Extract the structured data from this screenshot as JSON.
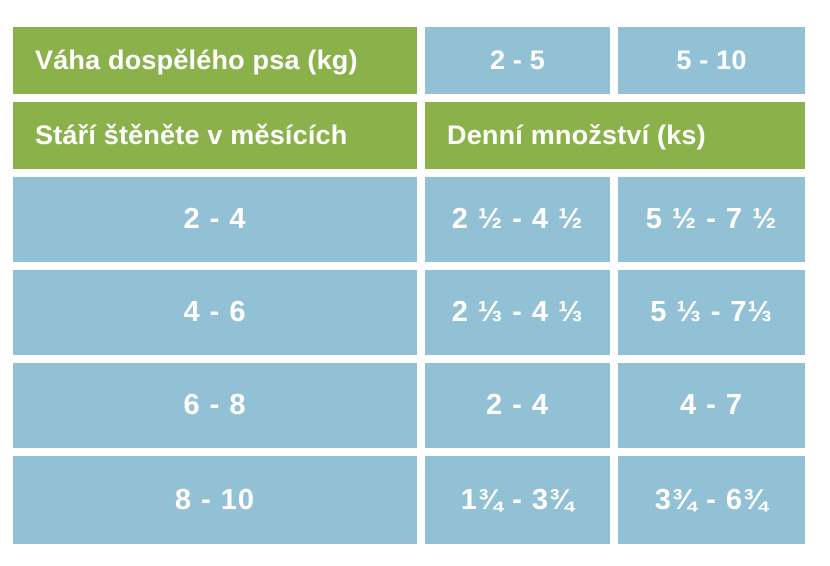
{
  "colors": {
    "green": "#8AB14A",
    "blue": "#92C1D6",
    "text_on_color": "#FFFFFF",
    "page_background": "#FFFFFF"
  },
  "table": {
    "weight_header_label": "Váha dospělého psa (kg)",
    "weight_ranges": [
      "2 - 5",
      "5 - 10"
    ],
    "age_header_label": "Stáří štěněte v měsících",
    "daily_amount_label": "Denní množství (ks)",
    "rows": [
      {
        "age": "2 - 4",
        "amount_2_5": "2 ½ - 4 ½",
        "amount_5_10": "5 ½ - 7 ½"
      },
      {
        "age": "4 - 6",
        "amount_2_5": "2 ⅓ - 4 ⅓",
        "amount_5_10": "5 ⅓ - 7⅓"
      },
      {
        "age": "6 - 8",
        "amount_2_5": "2 - 4",
        "amount_5_10": "4 - 7"
      },
      {
        "age": "8 - 10",
        "amount_2_5": "1¾ - 3¾",
        "amount_5_10": "3¾ - 6¾"
      }
    ]
  }
}
